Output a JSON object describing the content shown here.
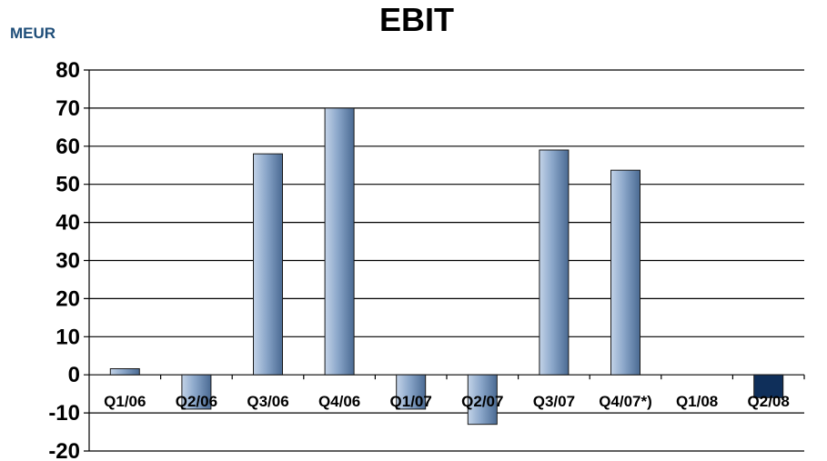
{
  "chart_data": {
    "type": "bar",
    "title": "EBIT",
    "ylabel": "MEUR",
    "xlabel": "",
    "categories": [
      "Q1/06",
      "Q2/06",
      "Q3/06",
      "Q4/06",
      "Q1/07",
      "Q2/07",
      "Q3/07",
      "Q4/07*)",
      "Q1/08",
      "Q2/08"
    ],
    "values": [
      1.6,
      -9,
      58,
      70,
      -9,
      -13,
      59,
      53.7,
      0,
      -6
    ],
    "ylim": [
      -20,
      80
    ],
    "yticks": [
      80,
      70,
      60,
      50,
      40,
      30,
      20,
      10,
      0,
      -10,
      -20
    ],
    "grid": true,
    "colors": {
      "bar_default_light": "#a9bfdc",
      "bar_default_dark": "#4f6e96",
      "bar_highlight": "#0f2f5a"
    },
    "highlight_index": 9
  }
}
